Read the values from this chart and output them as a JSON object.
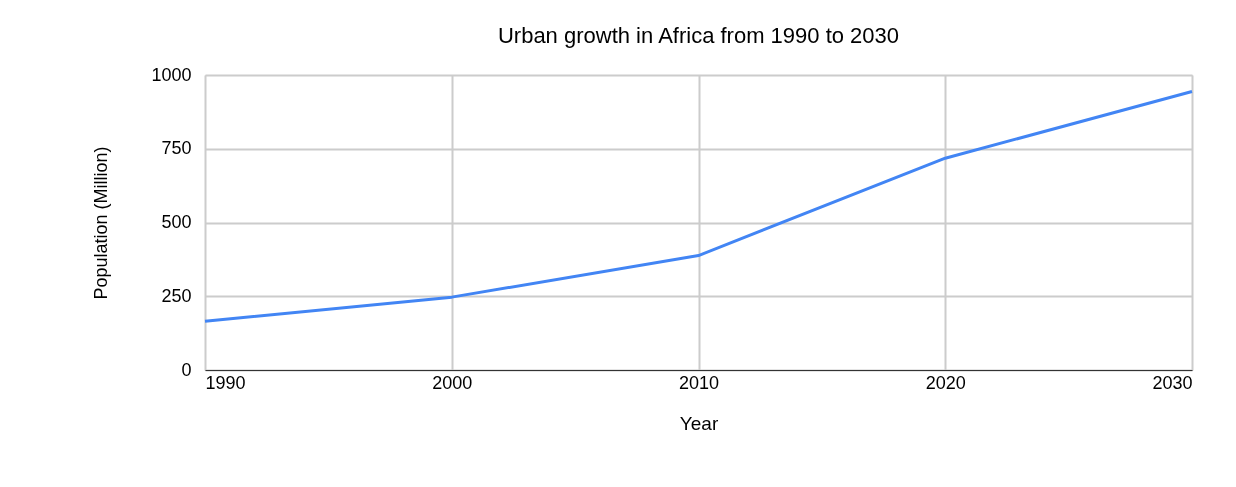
{
  "chart_data": {
    "type": "line",
    "title": "Urban growth in Africa from 1990 to 2030",
    "xlabel": "Year",
    "ylabel": "Population (Million)",
    "x": [
      1990,
      2000,
      2010,
      2020,
      2030
    ],
    "series": [
      {
        "color": "#4285f4",
        "values": [
          165,
          247,
          388,
          718,
          944
        ]
      }
    ],
    "xlim": [
      1990,
      2030
    ],
    "xticks": [
      1990,
      2000,
      2010,
      2020,
      2030
    ],
    "ylim": [
      0,
      1000
    ],
    "yticks": [
      0,
      250,
      500,
      750,
      1000
    ],
    "grid": true,
    "marker": "none",
    "line_style": "solid"
  }
}
